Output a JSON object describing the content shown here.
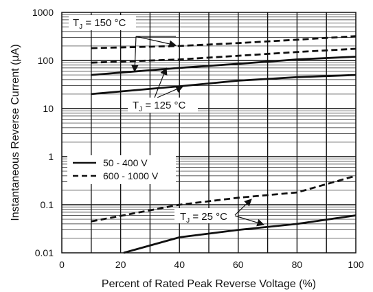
{
  "chart_data": {
    "type": "line",
    "xlabel": "Percent of Rated Peak Reverse Voltage (%)",
    "ylabel": "Instantaneous Reverse Current (µA)",
    "xlim": [
      0,
      100
    ],
    "ylim": [
      0.01,
      1000
    ],
    "y_scale": "log",
    "grid": true,
    "x_ticks": [
      0,
      20,
      40,
      60,
      80,
      100
    ],
    "x_tick_labels": [
      "0",
      "20",
      "40",
      "60",
      "80",
      "100"
    ],
    "y_ticks": [
      0.01,
      0.1,
      1,
      10,
      100,
      1000
    ],
    "y_tick_labels": [
      "0.01",
      "0.1",
      "1",
      "10",
      "100",
      "1000"
    ],
    "legend": {
      "placement": "center-left",
      "entries": [
        {
          "label": "50 - 400 V",
          "style": "solid"
        },
        {
          "label": "600 - 1000 V",
          "style": "dashed"
        }
      ]
    },
    "series": [
      {
        "group": "50 - 400 V",
        "temperature": "150",
        "style": "solid",
        "x": [
          10,
          40,
          60,
          80,
          100
        ],
        "y": [
          50,
          70,
          85,
          105,
          120
        ]
      },
      {
        "group": "50 - 400 V",
        "temperature": "125",
        "style": "solid",
        "x": [
          10,
          40,
          60,
          80,
          100
        ],
        "y": [
          20,
          29,
          38,
          45,
          50
        ]
      },
      {
        "group": "50 - 400 V",
        "temperature": "25",
        "style": "solid",
        "x": [
          21,
          40,
          60,
          80,
          100
        ],
        "y": [
          0.01,
          0.021,
          0.03,
          0.04,
          0.06
        ]
      },
      {
        "group": "600 - 1000 V",
        "temperature": "150",
        "style": "dashed",
        "x": [
          10,
          40,
          60,
          80,
          100
        ],
        "y": [
          180,
          200,
          230,
          270,
          320
        ]
      },
      {
        "group": "600 - 1000 V",
        "temperature": "125",
        "style": "dashed",
        "x": [
          10,
          40,
          60,
          80,
          100
        ],
        "y": [
          90,
          105,
          125,
          150,
          175
        ]
      },
      {
        "group": "600 - 1000 V",
        "temperature": "25",
        "style": "dashed",
        "x": [
          10,
          40,
          60,
          80,
          100
        ],
        "y": [
          0.045,
          0.1,
          0.14,
          0.18,
          0.4
        ]
      }
    ],
    "annotations": [
      {
        "prefix": "T",
        "subscript": "J",
        "text": " = 150 °C"
      },
      {
        "prefix": "T",
        "subscript": "J",
        "text": " = 125 °C"
      },
      {
        "prefix": "T",
        "subscript": "J",
        "text": " = 25 °C"
      }
    ]
  }
}
